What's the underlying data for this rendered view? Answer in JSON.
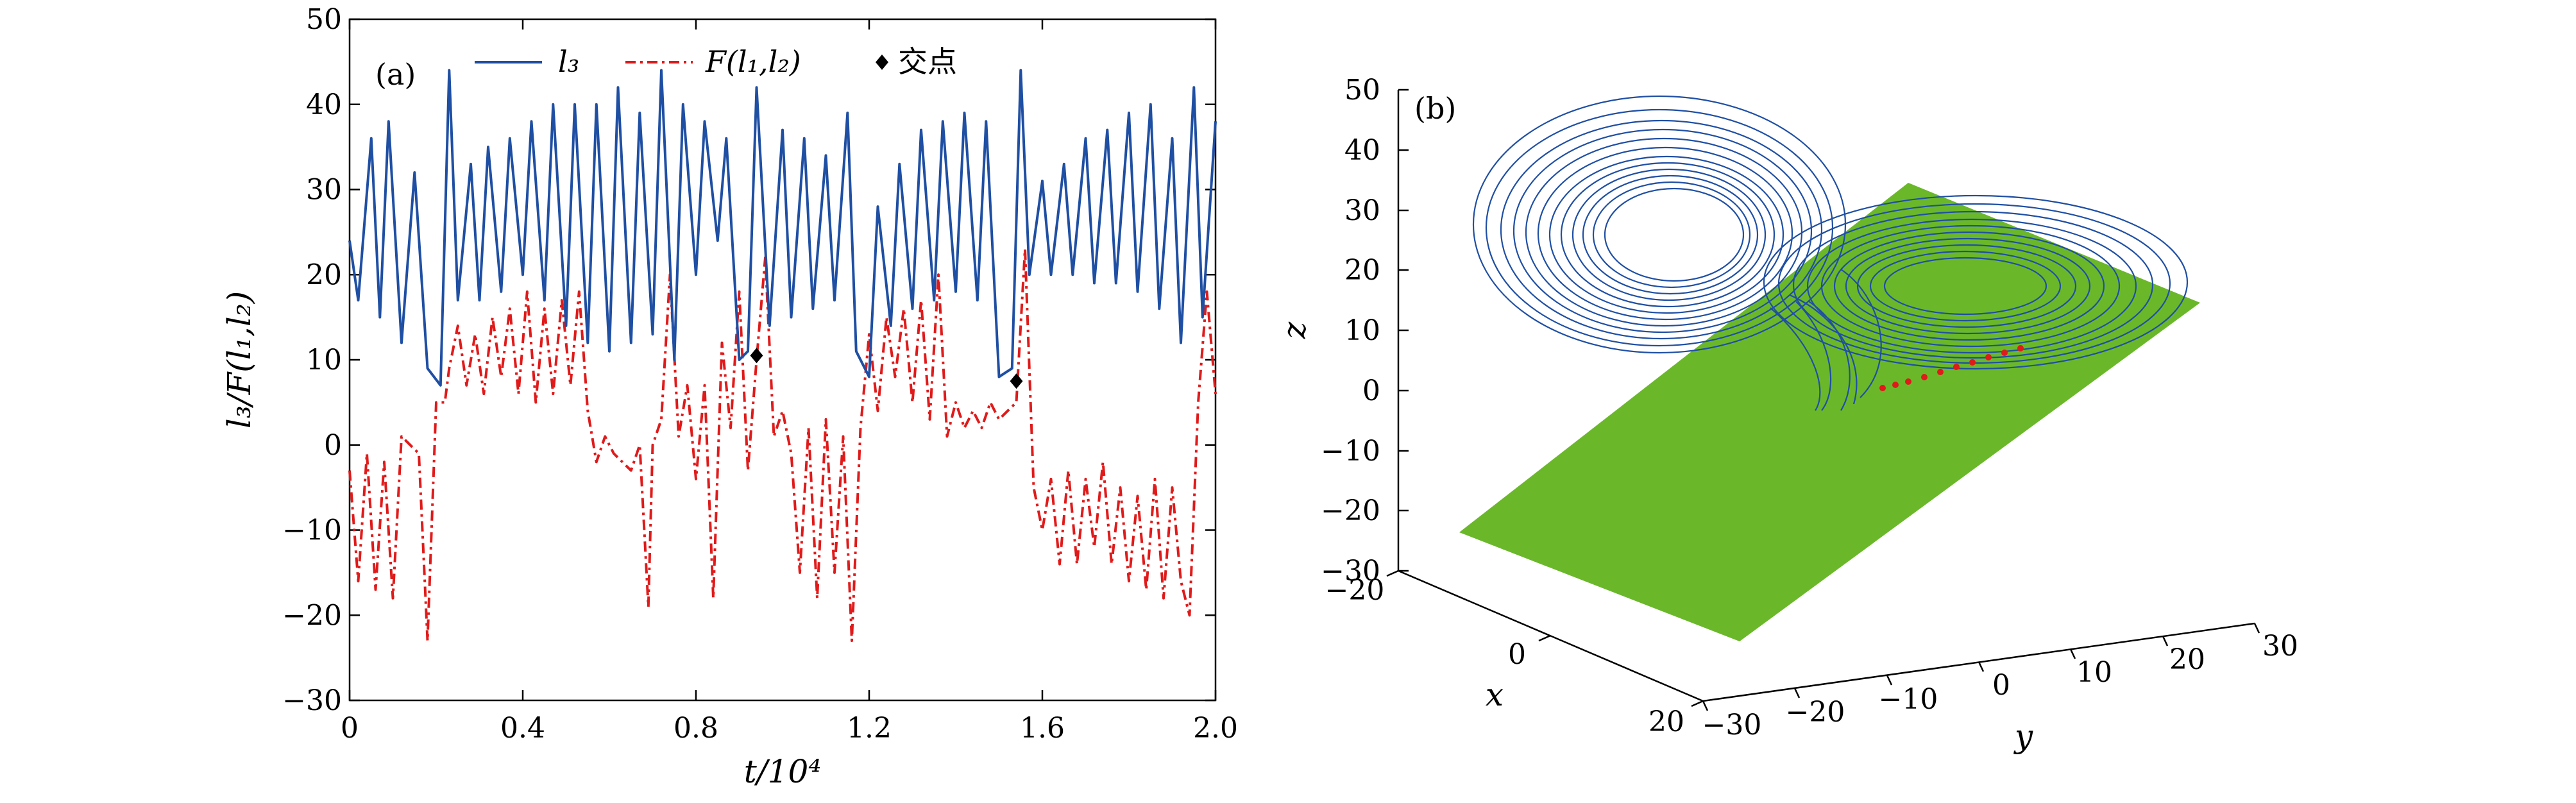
{
  "figure": {
    "panel_a_label": "(a)",
    "panel_b_label": "(b)"
  },
  "chart_data": [
    {
      "type": "line",
      "panel": "(a)",
      "xlabel": "t/10⁴",
      "ylabel": "l₃/F(l₁,l₂)",
      "xlim": [
        0,
        2.0
      ],
      "ylim": [
        -30,
        50
      ],
      "xticks": [
        "0",
        "0.4",
        "0.8",
        "1.2",
        "1.6",
        "2.0"
      ],
      "yticks": [
        "−30",
        "−20",
        "−10",
        "0",
        "10",
        "20",
        "30",
        "40",
        "50"
      ],
      "legend_position": "top",
      "grid": false,
      "series": [
        {
          "name": "l₃",
          "style": "solid",
          "color": "#1f4fa3",
          "x": [
            0.0,
            0.02,
            0.05,
            0.07,
            0.09,
            0.12,
            0.15,
            0.18,
            0.21,
            0.23,
            0.25,
            0.28,
            0.3,
            0.32,
            0.35,
            0.37,
            0.4,
            0.42,
            0.45,
            0.47,
            0.5,
            0.52,
            0.55,
            0.57,
            0.6,
            0.62,
            0.65,
            0.67,
            0.7,
            0.72,
            0.75,
            0.77,
            0.8,
            0.82,
            0.85,
            0.87,
            0.9,
            0.92,
            0.94,
            0.97,
            1.0,
            1.02,
            1.05,
            1.07,
            1.1,
            1.12,
            1.15,
            1.17,
            1.2,
            1.22,
            1.25,
            1.27,
            1.3,
            1.32,
            1.35,
            1.37,
            1.4,
            1.42,
            1.45,
            1.47,
            1.5,
            1.53,
            1.55,
            1.57,
            1.6,
            1.62,
            1.65,
            1.67,
            1.7,
            1.72,
            1.75,
            1.77,
            1.8,
            1.82,
            1.85,
            1.87,
            1.9,
            1.92,
            1.95,
            1.97,
            2.0
          ],
          "values": [
            24,
            17,
            36,
            15,
            38,
            12,
            32,
            9,
            7,
            44,
            17,
            33,
            17,
            35,
            18,
            36,
            20,
            38,
            17,
            40,
            14,
            40,
            12,
            40,
            11,
            42,
            12,
            39,
            13,
            44,
            10,
            40,
            20,
            38,
            24,
            36,
            10,
            11,
            42,
            14,
            37,
            15,
            36,
            16,
            34,
            17,
            39,
            11,
            8,
            28,
            14,
            33,
            16,
            37,
            17,
            38,
            18,
            39,
            17,
            38,
            8,
            9,
            44,
            20,
            31,
            20,
            33,
            20,
            36,
            19,
            37,
            19,
            39,
            18,
            40,
            16,
            36,
            12,
            42,
            15,
            38
          ]
        },
        {
          "name": "F(l₁,l₂)",
          "style": "dashdot",
          "color": "#e01a1a",
          "x": [
            0.0,
            0.02,
            0.04,
            0.06,
            0.08,
            0.1,
            0.12,
            0.14,
            0.16,
            0.18,
            0.2,
            0.22,
            0.23,
            0.25,
            0.27,
            0.29,
            0.31,
            0.33,
            0.35,
            0.37,
            0.39,
            0.41,
            0.43,
            0.45,
            0.47,
            0.49,
            0.51,
            0.53,
            0.55,
            0.57,
            0.59,
            0.61,
            0.63,
            0.65,
            0.67,
            0.69,
            0.7,
            0.72,
            0.74,
            0.76,
            0.78,
            0.8,
            0.82,
            0.84,
            0.86,
            0.88,
            0.9,
            0.92,
            0.94,
            0.96,
            0.98,
            1.0,
            1.02,
            1.04,
            1.06,
            1.08,
            1.1,
            1.12,
            1.14,
            1.16,
            1.18,
            1.2,
            1.22,
            1.24,
            1.26,
            1.28,
            1.3,
            1.32,
            1.34,
            1.36,
            1.38,
            1.4,
            1.42,
            1.44,
            1.46,
            1.48,
            1.5,
            1.52,
            1.54,
            1.56,
            1.58,
            1.6,
            1.62,
            1.64,
            1.66,
            1.68,
            1.7,
            1.72,
            1.74,
            1.76,
            1.78,
            1.8,
            1.82,
            1.84,
            1.86,
            1.88,
            1.9,
            1.92,
            1.94,
            1.96,
            1.98,
            2.0
          ],
          "values": [
            -3,
            -16,
            -1,
            -17,
            -2,
            -18,
            1,
            0,
            -1,
            -23,
            5,
            5,
            9,
            14,
            7,
            13,
            6,
            15,
            8,
            16,
            6,
            18,
            5,
            16,
            6,
            17,
            7,
            18,
            4,
            -2,
            1,
            -1,
            -2,
            -3,
            0,
            -19,
            0,
            3,
            20,
            1,
            7,
            -4,
            7,
            -18,
            12,
            2,
            18,
            -3,
            10,
            22,
            1,
            4,
            -1,
            -15,
            2,
            -18,
            3,
            -15,
            1,
            -23,
            2,
            13,
            4,
            15,
            8,
            16,
            5,
            17,
            3,
            20,
            1,
            5,
            2,
            4,
            2,
            5,
            3,
            4,
            5,
            23,
            -5,
            -10,
            -4,
            -14,
            -3,
            -14,
            -4,
            -12,
            -2,
            -14,
            -5,
            -16,
            -6,
            -17,
            -4,
            -18,
            -5,
            -16,
            -20,
            5,
            18,
            6
          ]
        },
        {
          "name": "交点",
          "style": "markers",
          "color": "#000000",
          "x": [
            0.94,
            1.54
          ],
          "values": [
            10.5,
            7.5
          ]
        }
      ]
    },
    {
      "type": "line",
      "panel": "(b)",
      "projection": "3d",
      "xlabel": "x",
      "ylabel": "y",
      "zlabel": "z",
      "xlim": [
        -20,
        20
      ],
      "ylim": [
        -30,
        30
      ],
      "zlim": [
        -30,
        50
      ],
      "xticks": [
        "−20",
        "0",
        "20"
      ],
      "yticks": [
        "−30",
        "−20",
        "−10",
        "0",
        "10",
        "20",
        "30"
      ],
      "zticks": [
        "−30",
        "−20",
        "−10",
        "0",
        "10",
        "20",
        "30",
        "40",
        "50"
      ],
      "grid": false,
      "series": [
        {
          "name": "trajectory",
          "color": "#1f4fa3"
        },
        {
          "name": "plane",
          "color": "#6ab82a"
        },
        {
          "name": "intersections",
          "color": "#e01a1a"
        }
      ]
    }
  ]
}
